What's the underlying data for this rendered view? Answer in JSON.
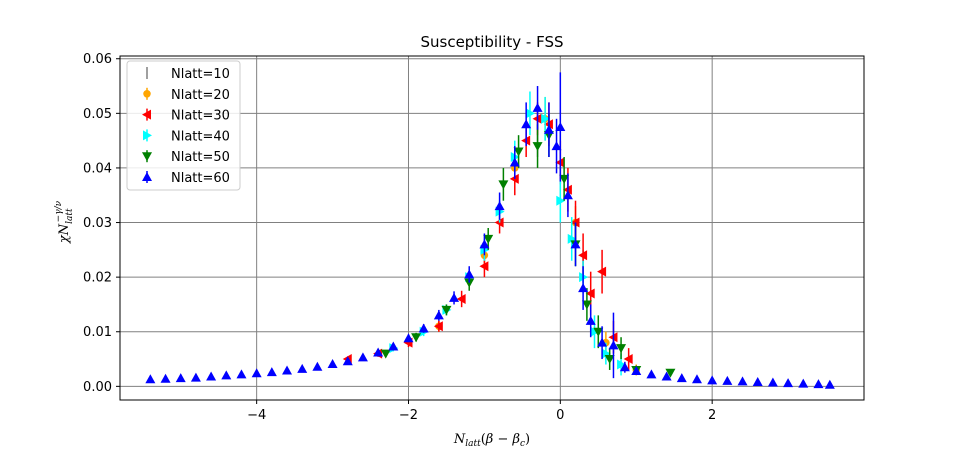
{
  "chart_data": {
    "type": "scatter",
    "title": "Susceptibility - FSS",
    "xlabel": "N_latt(β − β_c)",
    "ylabel": "χ N_latt^(−γ/ν)",
    "xlim": [
      -5.8,
      4.0
    ],
    "ylim": [
      -0.0025,
      0.0605
    ],
    "x_ticks": [
      -4,
      -2,
      0,
      2
    ],
    "x_tick_labels": [
      "−4",
      "−2",
      "0",
      "2"
    ],
    "y_ticks": [
      0.0,
      0.01,
      0.02,
      0.03,
      0.04,
      0.05,
      0.06
    ],
    "y_tick_labels": [
      "0.00",
      "0.01",
      "0.02",
      "0.03",
      "0.04",
      "0.05",
      "0.06"
    ],
    "grid": true,
    "legend_position": "top-left",
    "series": [
      {
        "name": "Nlatt=10",
        "color": "#808080",
        "marker": "none",
        "points": [
          {
            "x": -0.3,
            "y": 0.046,
            "err": 0.004
          },
          {
            "x": 0.3,
            "y": 0.022,
            "err": 0.003
          }
        ]
      },
      {
        "name": "Nlatt=20",
        "color": "#ffa500",
        "marker": "circle",
        "points": [
          {
            "x": -1.6,
            "y": 0.011,
            "err": 0.001
          },
          {
            "x": -1.0,
            "y": 0.024,
            "err": 0.002
          },
          {
            "x": -0.6,
            "y": 0.04,
            "err": 0.003
          },
          {
            "x": -0.2,
            "y": 0.049,
            "err": 0.004
          },
          {
            "x": 0.2,
            "y": 0.03,
            "err": 0.003
          },
          {
            "x": 0.6,
            "y": 0.008,
            "err": 0.002
          },
          {
            "x": 1.0,
            "y": 0.003,
            "err": 0.001
          }
        ]
      },
      {
        "name": "Nlatt=30",
        "color": "#ff0000",
        "marker": "triangle-left",
        "points": [
          {
            "x": -2.8,
            "y": 0.005,
            "err": 0.0005
          },
          {
            "x": -2.4,
            "y": 0.006,
            "err": 0.0006
          },
          {
            "x": -2.0,
            "y": 0.008,
            "err": 0.0008
          },
          {
            "x": -1.6,
            "y": 0.011,
            "err": 0.001
          },
          {
            "x": -1.3,
            "y": 0.016,
            "err": 0.0015
          },
          {
            "x": -1.0,
            "y": 0.022,
            "err": 0.002
          },
          {
            "x": -0.8,
            "y": 0.03,
            "err": 0.002
          },
          {
            "x": -0.6,
            "y": 0.038,
            "err": 0.003
          },
          {
            "x": -0.45,
            "y": 0.045,
            "err": 0.003
          },
          {
            "x": -0.3,
            "y": 0.049,
            "err": 0.003
          },
          {
            "x": -0.15,
            "y": 0.048,
            "err": 0.004
          },
          {
            "x": 0.0,
            "y": 0.041,
            "err": 0.004
          },
          {
            "x": 0.1,
            "y": 0.036,
            "err": 0.004
          },
          {
            "x": 0.2,
            "y": 0.03,
            "err": 0.004
          },
          {
            "x": 0.3,
            "y": 0.024,
            "err": 0.004
          },
          {
            "x": 0.4,
            "y": 0.017,
            "err": 0.004
          },
          {
            "x": 0.55,
            "y": 0.021,
            "err": 0.004
          },
          {
            "x": 0.7,
            "y": 0.009,
            "err": 0.003
          },
          {
            "x": 0.9,
            "y": 0.005,
            "err": 0.002
          }
        ]
      },
      {
        "name": "Nlatt=40",
        "color": "#00ffff",
        "marker": "triangle-right",
        "points": [
          {
            "x": -2.2,
            "y": 0.007,
            "err": 0.0006
          },
          {
            "x": -1.8,
            "y": 0.01,
            "err": 0.0008
          },
          {
            "x": -1.5,
            "y": 0.014,
            "err": 0.001
          },
          {
            "x": -1.2,
            "y": 0.02,
            "err": 0.0015
          },
          {
            "x": -1.0,
            "y": 0.025,
            "err": 0.002
          },
          {
            "x": -0.8,
            "y": 0.032,
            "err": 0.002
          },
          {
            "x": -0.6,
            "y": 0.042,
            "err": 0.003
          },
          {
            "x": -0.4,
            "y": 0.05,
            "err": 0.004
          },
          {
            "x": -0.2,
            "y": 0.049,
            "err": 0.004
          },
          {
            "x": 0.0,
            "y": 0.034,
            "err": 0.004
          },
          {
            "x": 0.15,
            "y": 0.027,
            "err": 0.004
          },
          {
            "x": 0.3,
            "y": 0.02,
            "err": 0.003
          },
          {
            "x": 0.45,
            "y": 0.01,
            "err": 0.003
          },
          {
            "x": 0.6,
            "y": 0.006,
            "err": 0.002
          },
          {
            "x": 0.8,
            "y": 0.004,
            "err": 0.002
          }
        ]
      },
      {
        "name": "Nlatt=50",
        "color": "#008000",
        "marker": "triangle-down",
        "points": [
          {
            "x": -2.3,
            "y": 0.006,
            "err": 0.0005
          },
          {
            "x": -1.9,
            "y": 0.009,
            "err": 0.0008
          },
          {
            "x": -1.5,
            "y": 0.014,
            "err": 0.001
          },
          {
            "x": -1.2,
            "y": 0.019,
            "err": 0.0015
          },
          {
            "x": -0.95,
            "y": 0.027,
            "err": 0.002
          },
          {
            "x": -0.75,
            "y": 0.037,
            "err": 0.003
          },
          {
            "x": -0.55,
            "y": 0.043,
            "err": 0.003
          },
          {
            "x": -0.3,
            "y": 0.044,
            "err": 0.004
          },
          {
            "x": -0.15,
            "y": 0.046,
            "err": 0.004
          },
          {
            "x": 0.05,
            "y": 0.038,
            "err": 0.004
          },
          {
            "x": 0.2,
            "y": 0.026,
            "err": 0.004
          },
          {
            "x": 0.35,
            "y": 0.015,
            "err": 0.003
          },
          {
            "x": 0.5,
            "y": 0.01,
            "err": 0.003
          },
          {
            "x": 0.65,
            "y": 0.005,
            "err": 0.002
          },
          {
            "x": 0.8,
            "y": 0.007,
            "err": 0.002
          },
          {
            "x": 1.0,
            "y": 0.003,
            "err": 0.0008
          },
          {
            "x": 1.45,
            "y": 0.0025,
            "err": 0.0006
          }
        ]
      },
      {
        "name": "Nlatt=60",
        "color": "#0000ff",
        "marker": "triangle-up",
        "points": [
          {
            "x": -5.4,
            "y": 0.0013,
            "err": 0.0002
          },
          {
            "x": -5.2,
            "y": 0.0014,
            "err": 0.0002
          },
          {
            "x": -5.0,
            "y": 0.0015,
            "err": 0.0002
          },
          {
            "x": -4.8,
            "y": 0.0016,
            "err": 0.0002
          },
          {
            "x": -4.6,
            "y": 0.0018,
            "err": 0.0002
          },
          {
            "x": -4.4,
            "y": 0.002,
            "err": 0.0002
          },
          {
            "x": -4.2,
            "y": 0.0022,
            "err": 0.0002
          },
          {
            "x": -4.0,
            "y": 0.0024,
            "err": 0.0002
          },
          {
            "x": -3.8,
            "y": 0.0026,
            "err": 0.0003
          },
          {
            "x": -3.6,
            "y": 0.0029,
            "err": 0.0003
          },
          {
            "x": -3.4,
            "y": 0.0032,
            "err": 0.0003
          },
          {
            "x": -3.2,
            "y": 0.0036,
            "err": 0.0003
          },
          {
            "x": -3.0,
            "y": 0.0041,
            "err": 0.0004
          },
          {
            "x": -2.8,
            "y": 0.0046,
            "err": 0.0004
          },
          {
            "x": -2.6,
            "y": 0.0053,
            "err": 0.0005
          },
          {
            "x": -2.4,
            "y": 0.0062,
            "err": 0.0005
          },
          {
            "x": -2.2,
            "y": 0.0073,
            "err": 0.0006
          },
          {
            "x": -2.0,
            "y": 0.0088,
            "err": 0.0007
          },
          {
            "x": -1.8,
            "y": 0.0106,
            "err": 0.0008
          },
          {
            "x": -1.6,
            "y": 0.013,
            "err": 0.001
          },
          {
            "x": -1.4,
            "y": 0.0162,
            "err": 0.0012
          },
          {
            "x": -1.2,
            "y": 0.0205,
            "err": 0.0015
          },
          {
            "x": -1.0,
            "y": 0.026,
            "err": 0.002
          },
          {
            "x": -0.8,
            "y": 0.033,
            "err": 0.0025
          },
          {
            "x": -0.6,
            "y": 0.041,
            "err": 0.003
          },
          {
            "x": -0.45,
            "y": 0.048,
            "err": 0.004
          },
          {
            "x": -0.3,
            "y": 0.051,
            "err": 0.004
          },
          {
            "x": -0.15,
            "y": 0.047,
            "err": 0.005
          },
          {
            "x": -0.05,
            "y": 0.044,
            "err": 0.005
          },
          {
            "x": 0.0,
            "y": 0.0475,
            "err": 0.01
          },
          {
            "x": 0.1,
            "y": 0.035,
            "err": 0.004
          },
          {
            "x": 0.2,
            "y": 0.026,
            "err": 0.004
          },
          {
            "x": 0.3,
            "y": 0.018,
            "err": 0.004
          },
          {
            "x": 0.4,
            "y": 0.012,
            "err": 0.003
          },
          {
            "x": 0.55,
            "y": 0.008,
            "err": 0.003
          },
          {
            "x": 0.7,
            "y": 0.0075,
            "err": 0.006
          },
          {
            "x": 0.85,
            "y": 0.0035,
            "err": 0.001
          },
          {
            "x": 1.0,
            "y": 0.0028,
            "err": 0.0006
          },
          {
            "x": 1.2,
            "y": 0.0022,
            "err": 0.0004
          },
          {
            "x": 1.4,
            "y": 0.0018,
            "err": 0.0003
          },
          {
            "x": 1.6,
            "y": 0.0015,
            "err": 0.0003
          },
          {
            "x": 1.8,
            "y": 0.0013,
            "err": 0.0002
          },
          {
            "x": 2.0,
            "y": 0.0011,
            "err": 0.0002
          },
          {
            "x": 2.2,
            "y": 0.001,
            "err": 0.0002
          },
          {
            "x": 2.4,
            "y": 0.0009,
            "err": 0.0002
          },
          {
            "x": 2.6,
            "y": 0.0008,
            "err": 0.0002
          },
          {
            "x": 2.8,
            "y": 0.0007,
            "err": 0.0002
          },
          {
            "x": 3.0,
            "y": 0.0006,
            "err": 0.0002
          },
          {
            "x": 3.2,
            "y": 0.0005,
            "err": 0.0002
          },
          {
            "x": 3.4,
            "y": 0.0004,
            "err": 0.0002
          },
          {
            "x": 3.55,
            "y": 0.0003,
            "err": 0.0002
          }
        ]
      }
    ]
  }
}
